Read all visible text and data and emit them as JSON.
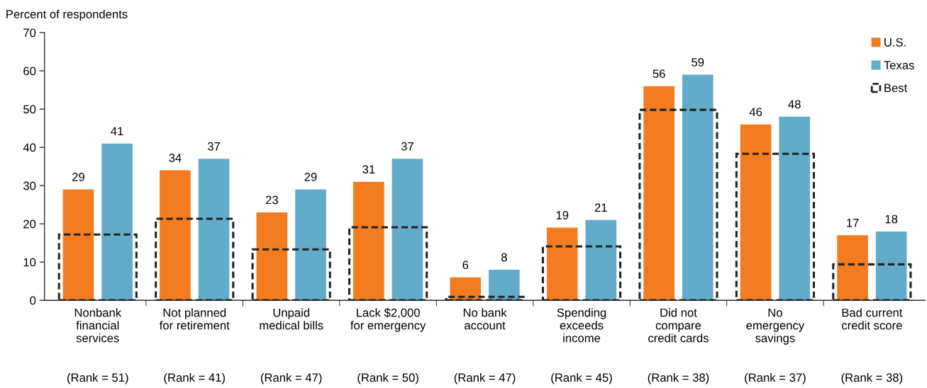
{
  "chart_data": {
    "type": "bar",
    "ylabel": "Percent of respondents",
    "categories": [
      "Nonbank\nfinancial\nservices",
      "Not planned\nfor retirement",
      "Unpaid\nmedical bills",
      "Lack $2,000\nfor emergency",
      "No bank\naccount",
      "Spending\nexceeds\nincome",
      "Did not\ncompare\ncredit cards",
      "No\nemergency\nsavings",
      "Bad current\ncredit score"
    ],
    "series": [
      {
        "name": "U.S.",
        "color": "#f47c20",
        "values": [
          29,
          34,
          23,
          31,
          6,
          19,
          56,
          46,
          17
        ],
        "value_labels": [
          "29",
          "34",
          "23",
          "31",
          "6",
          "19",
          "56",
          "46",
          "17"
        ]
      },
      {
        "name": "Texas",
        "color": "#62acc9",
        "values": [
          41,
          37,
          29,
          37,
          8,
          21,
          59,
          48,
          18
        ],
        "value_labels": [
          "41",
          "37",
          "29",
          "37",
          "8",
          "21",
          "59",
          "48",
          "18"
        ]
      },
      {
        "name": "Best",
        "color": "#222222",
        "line_style": "dashed",
        "values": [
          17.2,
          21.3,
          13.3,
          19.1,
          0.9,
          14.1,
          49.8,
          38.3,
          9.4
        ]
      }
    ],
    "annotations": [
      "(Rank = 51)",
      "(Rank = 41)",
      "(Rank = 47)",
      "(Rank = 50)",
      "(Rank = 47)",
      "(Rank = 45)",
      "(Rank = 38)",
      "(Rank = 37)",
      "(Rank = 38)"
    ],
    "ylim": [
      0,
      70
    ],
    "yticks": [
      0,
      10,
      20,
      30,
      40,
      50,
      60,
      70
    ],
    "grid": false,
    "legend": "top right"
  }
}
